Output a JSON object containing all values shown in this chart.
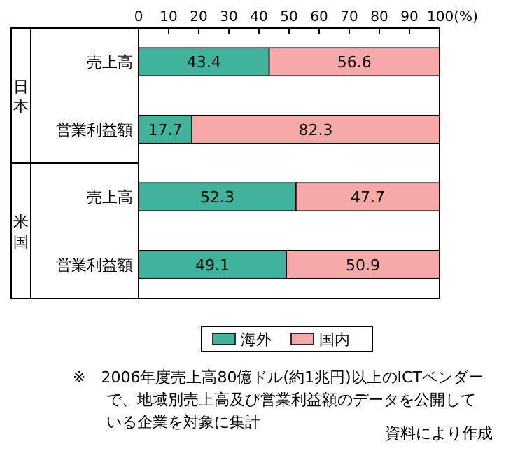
{
  "chart_data": {
    "type": "bar",
    "orientation": "horizontal",
    "stacked": true,
    "data_labels": true,
    "legend": "bottom",
    "categories": [
      "売上高",
      "営業利益額",
      "売上高",
      "営業利益額"
    ],
    "series": [
      {
        "name": "海外",
        "color": "#3fb39b",
        "values": [
          43.4,
          17.7,
          52.3,
          49.1
        ]
      },
      {
        "name": "国内",
        "color": "#f7a9a8",
        "values": [
          56.6,
          82.3,
          47.7,
          50.9
        ]
      }
    ],
    "xlim": [
      0,
      100
    ],
    "xticks": [
      0,
      10,
      20,
      30,
      40,
      50,
      60,
      70,
      80,
      90,
      {
        "value": 100,
        "label": "100(%)"
      }
    ],
    "annotations": [
      "日本",
      "米国",
      "※　2006年度売上高80億ドル(約1兆円)以上のICTベンダーで、地域別売上高及び営業利益額のデータを公開している企業を対象に集計",
      "資料により作成"
    ]
  }
}
